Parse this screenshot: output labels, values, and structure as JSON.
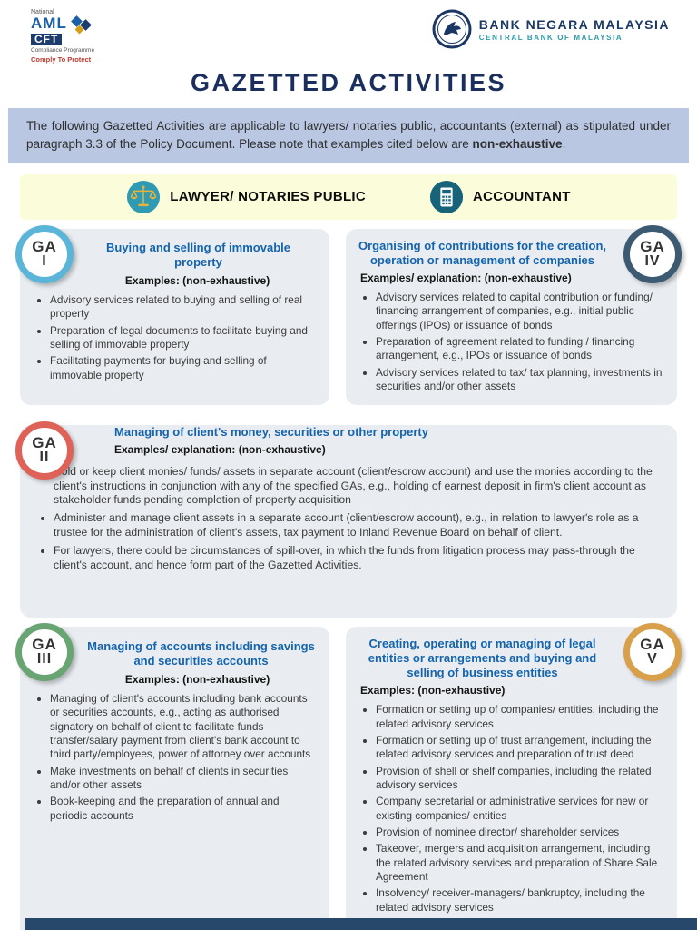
{
  "header": {
    "aml_logo": {
      "national": "National",
      "aml": "AML",
      "cft": "CFT",
      "programme": "Compliance Programme",
      "tagline": "Comply To Protect"
    },
    "bnm": {
      "name": "BANK NEGARA MALAYSIA",
      "subtitle": "CENTRAL BANK OF MALAYSIA"
    }
  },
  "title": "GAZETTED ACTIVITIES",
  "intro": {
    "part1": "The following Gazetted Activities are applicable to lawyers/ notaries public, accountants (external) as stipulated under paragraph 3.3 of the Policy Document. Please note that examples cited below are ",
    "bold": "non-exhaustive",
    "part2": "."
  },
  "audience": [
    {
      "icon": "scales-icon",
      "label": "LAWYER/ NOTARIES PUBLIC"
    },
    {
      "icon": "calculator-icon",
      "label": "ACCOUNTANT"
    }
  ],
  "colors": {
    "ga1": "#5ab5d8",
    "ga2": "#df6258",
    "ga3": "#69a573",
    "ga4": "#3d5a73",
    "ga5": "#d9a04b",
    "accent_title": "#1464ad",
    "intro_bg": "#b9c7e2",
    "band_bg": "#fbfcda",
    "card_bg": "#e9edf1",
    "footer": "#27476b"
  },
  "cards": {
    "ga1": {
      "badge_top": "GA",
      "badge_num": "I",
      "color": "#5ab5d8",
      "title": "Buying and selling of immovable property",
      "examples_label": "Examples: (non-exhaustive)",
      "bullets": [
        "Advisory services related to buying and selling of real property",
        "Preparation of legal documents to facilitate buying and selling of immovable property",
        "Facilitating payments for buying and selling of immovable property"
      ]
    },
    "ga4": {
      "badge_top": "GA",
      "badge_num": "IV",
      "color": "#3d5a73",
      "title": "Organising of contributions for the creation, operation or management of companies",
      "examples_label": "Examples/ explanation: (non-exhaustive)",
      "bullets": [
        "Advisory services related to capital contribution or funding/ financing arrangement of companies, e.g., initial public offerings (IPOs) or issuance of bonds",
        "Preparation of agreement related to funding / financing arrangement, e.g., IPOs or issuance of bonds",
        "Advisory services related to tax/ tax planning, investments in securities and/or other assets"
      ]
    },
    "ga2": {
      "badge_top": "GA",
      "badge_num": "II",
      "color": "#df6258",
      "title": "Managing of client's money, securities or other property",
      "examples_label": "Examples/ explanation: (non-exhaustive)",
      "bullets": [
        "Hold or keep client monies/ funds/ assets in separate account (client/escrow account) and use the monies according to the client's instructions in conjunction with any of the specified GAs, e.g., holding of earnest deposit in firm's client account as stakeholder funds pending completion of property acquisition",
        "Administer and manage client assets in a separate account (client/escrow account), e.g., in relation to lawyer's role as a trustee for the administration of client's assets, tax payment to Inland Revenue Board on behalf of client.",
        "For lawyers, there could be circumstances of spill-over, in which the funds from litigation process may pass-through the client's account, and hence form part of the Gazetted Activities."
      ]
    },
    "ga3": {
      "badge_top": "GA",
      "badge_num": "III",
      "color": "#69a573",
      "title": "Managing of accounts including savings and securities accounts",
      "examples_label": "Examples: (non-exhaustive)",
      "bullets": [
        "Managing of client's accounts including bank accounts or securities accounts, e.g., acting as authorised signatory on behalf of client to facilitate funds transfer/salary payment from client's bank account to third party/employees, power of attorney over accounts",
        "Make investments on behalf of clients in securities and/or other assets",
        "Book-keeping and the preparation of annual and periodic accounts"
      ]
    },
    "ga5": {
      "badge_top": "GA",
      "badge_num": "V",
      "color": "#d9a04b",
      "title": "Creating, operating or managing of legal entities or arrangements and buying and selling of business entities",
      "examples_label": "Examples: (non-exhaustive)",
      "bullets": [
        "Formation or setting up of companies/ entities, including the related advisory services",
        "Formation or setting up of trust arrangement, including the related advisory services and preparation of trust deed",
        "Provision of shell or shelf companies, including the related advisory services",
        "Company secretarial or administrative services for new or existing companies/ entities",
        "Provision of nominee director/ shareholder services",
        "Takeover, mergers and acquisition arrangement, including the related advisory services and preparation of Share Sale Agreement",
        "Insolvency/ receiver-managers/ bankruptcy, including the related advisory services"
      ]
    }
  }
}
